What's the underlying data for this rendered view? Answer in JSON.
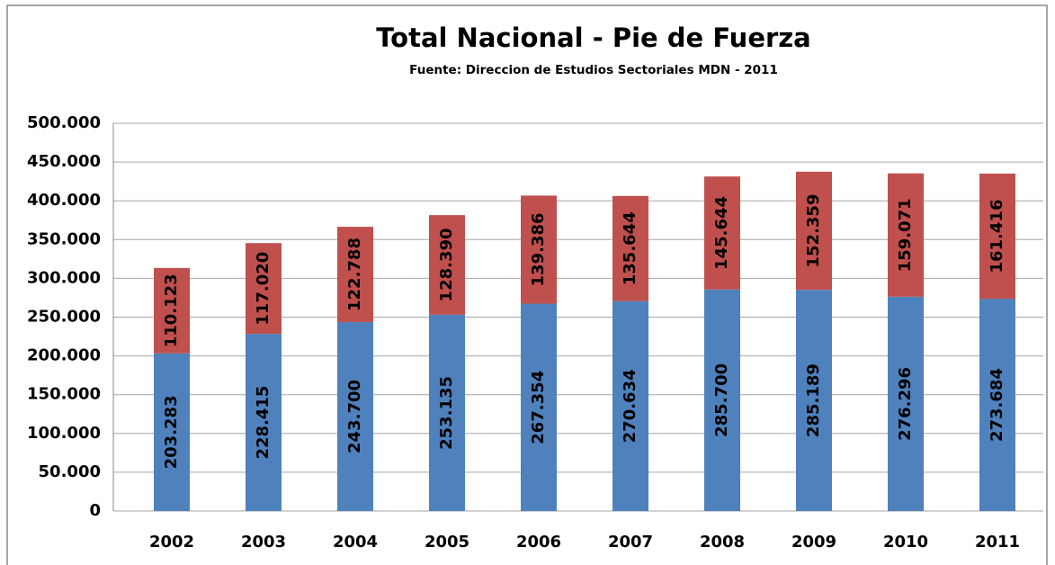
{
  "chart_data": {
    "type": "stacked_bar",
    "title": "Total Nacional - Pie de Fuerza",
    "subtitle": "Fuente: Direccion de Estudios Sectoriales  MDN - 2011",
    "categories": [
      "2002",
      "2003",
      "2004",
      "2005",
      "2006",
      "2007",
      "2008",
      "2009",
      "2010",
      "2011"
    ],
    "series": [
      {
        "color": "#4f81bd",
        "values": [
          203283,
          228415,
          243700,
          253135,
          267354,
          270634,
          285700,
          285189,
          276296,
          273684
        ],
        "value_labels": [
          "203.283",
          "228.415",
          "243.700",
          "253.135",
          "267.354",
          "270.634",
          "285.700",
          "285.189",
          "276.296",
          "273.684"
        ]
      },
      {
        "color": "#c0504d",
        "values": [
          110123,
          117020,
          122788,
          128390,
          139386,
          135644,
          145644,
          152359,
          159071,
          161416
        ],
        "value_labels": [
          "110.123",
          "117.020",
          "122.788",
          "128.390",
          "139.386",
          "135.644",
          "145.644",
          "152.359",
          "159.071",
          "161.416"
        ]
      }
    ],
    "ylim": [
      0,
      500000
    ],
    "yticks": [
      0,
      {
        "value": 50000,
        "label": "50.000"
      },
      {
        "value": 100000,
        "label": "100.000"
      },
      {
        "value": 150000,
        "label": "150.000"
      },
      {
        "value": 200000,
        "label": "200.000"
      },
      {
        "value": 250000,
        "label": "250.000"
      },
      {
        "value": 300000,
        "label": "300.000"
      },
      {
        "value": 350000,
        "label": "350.000"
      },
      {
        "value": 400000,
        "label": "400.000"
      },
      {
        "value": 450000,
        "label": "450.000"
      },
      {
        "value": 500000,
        "label": "500.000"
      }
    ],
    "grid": true
  }
}
